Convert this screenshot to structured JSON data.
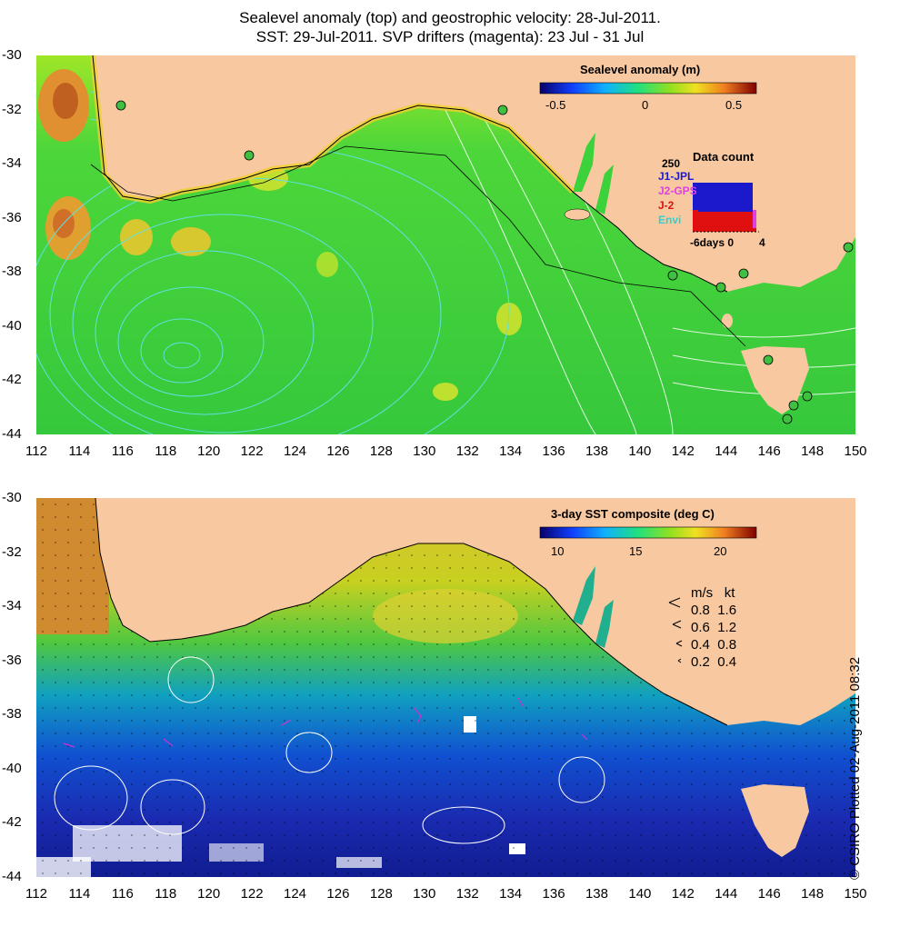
{
  "title": {
    "line1": "Sealevel anomaly (top) and geostrophic velocity: 28-Jul-2011.",
    "line2": "SST: 29-Jul-2011. SVP drifters (magenta): 23 Jul - 31 Jul"
  },
  "axes": {
    "x_ticks": [
      "112",
      "114",
      "116",
      "118",
      "120",
      "122",
      "124",
      "126",
      "128",
      "130",
      "132",
      "134",
      "136",
      "138",
      "140",
      "142",
      "144",
      "146",
      "148",
      "150"
    ],
    "y_ticks": [
      "-30",
      "-32",
      "-34",
      "-36",
      "-38",
      "-40",
      "-42",
      "-44"
    ],
    "lon_range": [
      112,
      150
    ],
    "lat_range": [
      -44,
      -30
    ]
  },
  "top_panel": {
    "colorbar_title": "Sealevel anomaly (m)",
    "colorbar_ticks": [
      "-0.5",
      "0",
      "0.5"
    ],
    "colorbar_range": [
      -0.6,
      0.6
    ],
    "data_count": {
      "title": "Data count",
      "max_label": "250",
      "missions": [
        {
          "name": "J1-JPL",
          "color": "#1a1acc"
        },
        {
          "name": "J2-GPS",
          "color": "#e040e0"
        },
        {
          "name": "J-2",
          "color": "#e01010"
        },
        {
          "name": "Envi",
          "color": "#30d0d0"
        }
      ],
      "x_label": "-6days 0",
      "x_end": "4"
    }
  },
  "bottom_panel": {
    "colorbar_title": "3-day SST composite (deg C)",
    "colorbar_ticks": [
      "10",
      "15",
      "20"
    ],
    "colorbar_range": [
      8.5,
      22
    ],
    "velocity_legend": {
      "header": [
        "m/s",
        "kt"
      ],
      "rows": [
        [
          "0.8",
          "1.6"
        ],
        [
          "0.6",
          "1.2"
        ],
        [
          "0.4",
          "0.8"
        ],
        [
          "0.2",
          "0.4"
        ]
      ]
    }
  },
  "credit": "© CSIRO Plotted 02-Aug-2011 08:32",
  "colors": {
    "land": "#f8c8a0",
    "ocean_green": "#3cd23c",
    "sst_warm": "#d0a020",
    "sst_cold": "#1020a0",
    "contour": "#60e0e0"
  }
}
